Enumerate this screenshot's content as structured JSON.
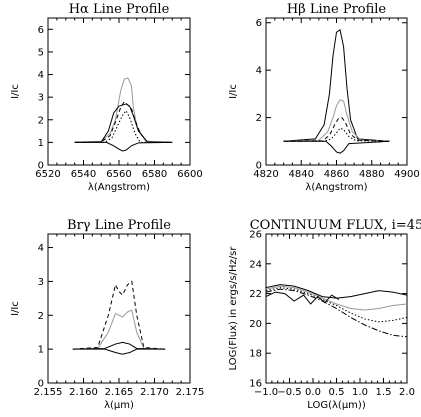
{
  "chart_data": [
    {
      "type": "line",
      "title": "Hα Line Profile",
      "xlabel": "λ(Angstrom)",
      "ylabel": "I/Ic",
      "xlim": [
        6520,
        6600
      ],
      "ylim": [
        0,
        6.5
      ],
      "xticks": [
        6520,
        6540,
        6560,
        6580,
        6600
      ],
      "yticks": [
        0,
        1,
        2,
        3,
        4,
        5,
        6
      ],
      "series": [
        {
          "style": "solid",
          "color": "#999999",
          "x": [
            6535,
            6550,
            6555,
            6558,
            6561,
            6563,
            6565,
            6567,
            6568,
            6570,
            6575,
            6590
          ],
          "y": [
            1,
            1.05,
            1.4,
            2.0,
            3.3,
            3.8,
            3.85,
            3.5,
            2.6,
            1.7,
            1.05,
            1
          ]
        },
        {
          "style": "dashed",
          "color": "#000000",
          "x": [
            6535,
            6550,
            6555,
            6558,
            6561,
            6563,
            6565,
            6567,
            6569,
            6572,
            6576,
            6590
          ],
          "y": [
            1,
            1.02,
            1.3,
            1.9,
            2.55,
            2.8,
            2.65,
            2.5,
            2.0,
            1.4,
            1.02,
            1
          ]
        },
        {
          "style": "solid",
          "color": "#000000",
          "x": [
            6535,
            6550,
            6554,
            6557,
            6560,
            6562,
            6564,
            6566,
            6568,
            6571,
            6576,
            6590
          ],
          "y": [
            1,
            1.02,
            1.5,
            2.3,
            2.6,
            2.65,
            2.7,
            2.6,
            2.2,
            1.5,
            1.02,
            1
          ]
        },
        {
          "style": "dotted",
          "color": "#000000",
          "x": [
            6535,
            6552,
            6556,
            6559,
            6562,
            6564,
            6566,
            6569,
            6572,
            6590
          ],
          "y": [
            1,
            1.0,
            1.2,
            1.7,
            2.2,
            2.4,
            2.1,
            1.4,
            1.0,
            1
          ]
        },
        {
          "style": "solid",
          "color": "#000000",
          "x": [
            6535,
            6553,
            6557,
            6560,
            6562,
            6564,
            6567,
            6571,
            6590
          ],
          "y": [
            1,
            1.0,
            0.85,
            0.7,
            0.62,
            0.66,
            0.85,
            0.98,
            1
          ]
        }
      ]
    },
    {
      "type": "line",
      "title": "Hβ Line Profile",
      "xlabel": "λ(Angstrom)",
      "ylabel": "I/Ic",
      "xlim": [
        4820,
        4900
      ],
      "ylim": [
        0,
        6.2
      ],
      "xticks": [
        4820,
        4840,
        4860,
        4880,
        4900
      ],
      "yticks": [
        0,
        2,
        4,
        6
      ],
      "series": [
        {
          "style": "solid",
          "color": "#000000",
          "x": [
            4830,
            4848,
            4853,
            4856,
            4858,
            4860,
            4862,
            4864,
            4866,
            4868,
            4872,
            4890
          ],
          "y": [
            1,
            1.1,
            1.7,
            3.0,
            4.6,
            5.6,
            5.7,
            5.0,
            3.2,
            1.9,
            1.1,
            1
          ]
        },
        {
          "style": "solid",
          "color": "#999999",
          "x": [
            4830,
            4850,
            4855,
            4858,
            4860,
            4862,
            4864,
            4866,
            4869,
            4874,
            4890
          ],
          "y": [
            1,
            1.05,
            1.4,
            2.0,
            2.5,
            2.75,
            2.7,
            2.1,
            1.4,
            1.05,
            1
          ]
        },
        {
          "style": "dashed",
          "color": "#000000",
          "x": [
            4830,
            4852,
            4856,
            4859,
            4861,
            4863,
            4865,
            4868,
            4872,
            4890
          ],
          "y": [
            1,
            1.02,
            1.25,
            1.7,
            1.95,
            2.0,
            1.8,
            1.3,
            1.05,
            1
          ]
        },
        {
          "style": "dotted",
          "color": "#000000",
          "x": [
            4830,
            4853,
            4857,
            4860,
            4862,
            4864,
            4867,
            4871,
            4890
          ],
          "y": [
            1,
            1.0,
            1.1,
            1.35,
            1.55,
            1.5,
            1.2,
            1.02,
            1
          ]
        },
        {
          "style": "solid",
          "color": "#000000",
          "x": [
            4830,
            4854,
            4857,
            4860,
            4862,
            4864,
            4867,
            4890
          ],
          "y": [
            1,
            1.0,
            0.8,
            0.55,
            0.5,
            0.6,
            0.9,
            1
          ]
        }
      ]
    },
    {
      "type": "line",
      "title": "Brγ Line Profile",
      "xlabel": "λ(μm)",
      "ylabel": "I/Ic",
      "xlim": [
        2.155,
        2.175
      ],
      "ylim": [
        0,
        4.4
      ],
      "xticks": [
        2.155,
        2.16,
        2.165,
        2.17,
        2.175
      ],
      "yticks": [
        0,
        1,
        2,
        3,
        4
      ],
      "series": [
        {
          "style": "dashed",
          "color": "#000000",
          "x": [
            2.1585,
            2.162,
            2.1635,
            2.1645,
            2.165,
            2.1655,
            2.1662,
            2.1668,
            2.1675,
            2.1685,
            2.1715
          ],
          "y": [
            1,
            1.05,
            2.0,
            2.9,
            2.7,
            2.6,
            2.9,
            3.0,
            2.0,
            1.05,
            1
          ]
        },
        {
          "style": "solid",
          "color": "#999999",
          "x": [
            2.1585,
            2.162,
            2.1635,
            2.1645,
            2.165,
            2.1655,
            2.1662,
            2.1668,
            2.1675,
            2.1685,
            2.1715
          ],
          "y": [
            1,
            1.02,
            1.5,
            2.05,
            2.0,
            1.95,
            2.1,
            2.15,
            1.5,
            1.02,
            1
          ]
        },
        {
          "style": "solid",
          "color": "#000000",
          "x": [
            2.1585,
            2.163,
            2.1645,
            2.1655,
            2.1665,
            2.1675,
            2.1715
          ],
          "y": [
            1,
            1.02,
            1.15,
            1.2,
            1.15,
            1.02,
            1
          ]
        },
        {
          "style": "solid",
          "color": "#000000",
          "x": [
            2.1585,
            2.163,
            2.1645,
            2.1655,
            2.1665,
            2.1675,
            2.1715
          ],
          "y": [
            1,
            1.0,
            0.9,
            0.85,
            0.9,
            1.0,
            1
          ]
        }
      ]
    },
    {
      "type": "line",
      "title": "CONTINUUM FLUX, i=45",
      "xlabel": "LOG(λ(μm))",
      "ylabel": "LOG(Flux) in ergs/s/Hz/sr",
      "xlim": [
        -1.0,
        2.0
      ],
      "ylim": [
        16,
        26
      ],
      "xticks": [
        -1.0,
        -0.5,
        0.0,
        0.5,
        1.0,
        1.5,
        2.0
      ],
      "xticklabels": [
        "−1.0",
        "−0.5",
        "0.0",
        "0.5",
        "1.0",
        "1.5",
        "2.0"
      ],
      "yticks": [
        16,
        18,
        20,
        22,
        24,
        26
      ],
      "series": [
        {
          "style": "solid",
          "color": "#000000",
          "x": [
            -1.0,
            -0.7,
            -0.4,
            -0.1,
            0.2,
            0.5,
            0.8,
            1.1,
            1.4,
            1.7,
            2.0
          ],
          "y": [
            22.4,
            22.6,
            22.5,
            22.2,
            21.8,
            21.7,
            21.8,
            22.0,
            22.2,
            22.1,
            21.9
          ]
        },
        {
          "style": "solid",
          "color": "#999999",
          "x": [
            -1.0,
            -0.7,
            -0.4,
            -0.1,
            0.2,
            0.5,
            0.8,
            1.1,
            1.4,
            1.7,
            2.0
          ],
          "y": [
            22.3,
            22.5,
            22.4,
            22.1,
            21.7,
            21.3,
            21.0,
            20.9,
            21.0,
            21.2,
            21.3
          ]
        },
        {
          "style": "dotted",
          "color": "#000000",
          "x": [
            -1.0,
            -0.7,
            -0.4,
            -0.1,
            0.2,
            0.5,
            0.8,
            1.1,
            1.4,
            1.7,
            2.0
          ],
          "y": [
            22.2,
            22.4,
            22.3,
            22.0,
            21.6,
            21.2,
            20.7,
            20.3,
            20.1,
            20.2,
            20.4
          ]
        },
        {
          "style": "dashdot",
          "color": "#000000",
          "x": [
            -1.0,
            -0.7,
            -0.4,
            -0.1,
            0.2,
            0.5,
            0.8,
            1.1,
            1.4,
            1.7,
            2.0
          ],
          "y": [
            22.1,
            22.3,
            22.2,
            21.9,
            21.5,
            21.0,
            20.4,
            19.9,
            19.5,
            19.2,
            19.1
          ]
        },
        {
          "style": "solid",
          "color": "#000000",
          "x": [
            -1.0,
            -0.8,
            -0.6,
            -0.4,
            -0.2,
            -0.05,
            0.1,
            0.25,
            0.4,
            0.55
          ],
          "y": [
            21.8,
            22.1,
            22.0,
            21.5,
            21.9,
            21.3,
            21.8,
            21.4,
            21.9,
            21.6
          ]
        }
      ]
    }
  ]
}
